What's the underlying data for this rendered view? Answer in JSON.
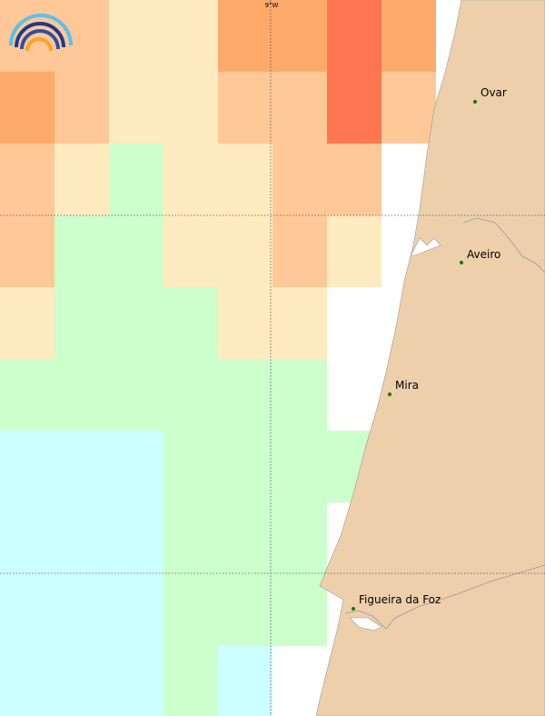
{
  "map": {
    "graticule_label": "9°W",
    "places": [
      "Ovar",
      "Aveiro",
      "Mira",
      "Figueira da Foz"
    ]
  }
}
